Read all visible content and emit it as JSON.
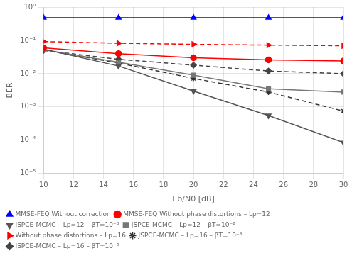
{
  "chart_data": {
    "type": "line",
    "x_label": "Eb/N0 [dB]",
    "y_label": "BER",
    "x": [
      10,
      15,
      20,
      25,
      30
    ],
    "series": [
      {
        "name": "MMSE-FEQ Without correction",
        "color": "blue",
        "marker": "triangle",
        "line_style": "solid",
        "values": [
          0.48,
          0.48,
          0.48,
          0.48,
          0.48
        ]
      },
      {
        "name": "MMSE-FEQ Without phase distortions – Lp=12",
        "color": "red",
        "marker": "circle",
        "line_style": "solid",
        "values": [
          0.06,
          0.04,
          0.03,
          0.026,
          0.024
        ]
      },
      {
        "name": "JSPCE-MCMC – Lp=12 – βT=10⁻³",
        "color": "#555555",
        "marker": "triangle-down",
        "line_style": "solid",
        "values": [
          0.055,
          0.017,
          0.003,
          0.00055,
          8.5e-05
        ]
      },
      {
        "name": "JSPCE-MCMC – Lp=12 – βT=10⁻²",
        "color": "#777777",
        "marker": "square",
        "line_style": "solid",
        "values": [
          0.052,
          0.022,
          0.009,
          0.0035,
          0.0028
        ]
      },
      {
        "name": "Without phase distortions – Lp=16",
        "color": "red",
        "marker": "triangle-right",
        "line_style": "dashed",
        "values": [
          0.092,
          0.082,
          0.076,
          0.072,
          0.069
        ]
      },
      {
        "name": "JSPCE-MCMC – Lp=16 – βT=10⁻³",
        "color": "#333333",
        "marker": "star",
        "line_style": "dashed",
        "values": [
          0.051,
          0.021,
          0.0072,
          0.0028,
          0.00075
        ]
      },
      {
        "name": "JSPCE-MCMC – Lp=16 – βT=10⁻²",
        "color": "#444444",
        "marker": "diamond",
        "line_style": "dashed",
        "values": [
          0.05,
          0.027,
          0.018,
          0.012,
          0.01
        ]
      }
    ],
    "xlim": [
      10,
      30
    ],
    "xticks": [
      10,
      12,
      14,
      16,
      18,
      20,
      22,
      24,
      26,
      28,
      30
    ],
    "ylim": [
      1e-05,
      1
    ],
    "yticks": [
      {
        "value": 1e-05,
        "label": "10⁻⁵"
      },
      {
        "value": 0.0001,
        "label": "10⁻⁴"
      },
      {
        "value": 0.001,
        "label": "10⁻³"
      },
      {
        "value": 0.01,
        "label": "10⁻²"
      },
      {
        "value": 0.1,
        "label": "10⁻¹"
      },
      {
        "value": 1,
        "label": "10⁰"
      }
    ],
    "log": "y",
    "grid": true,
    "legend": "lower left"
  }
}
